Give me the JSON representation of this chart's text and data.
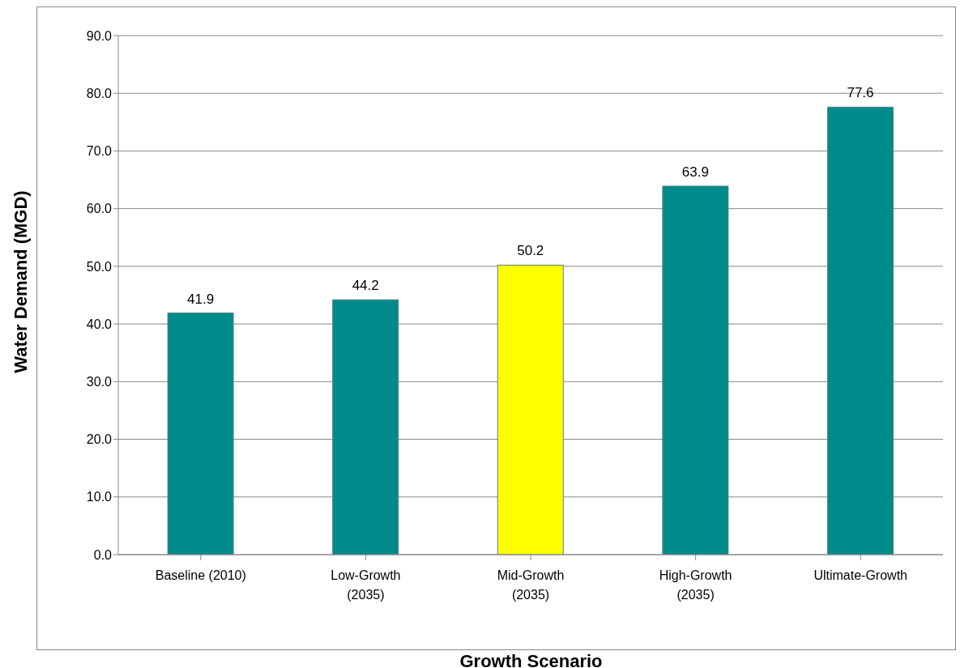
{
  "chart_data": {
    "type": "bar",
    "xlabel": "Growth Scenario",
    "ylabel": "Water Demand (MGD)",
    "categories": [
      "Baseline (2010)",
      "Low-Growth\n(2035)",
      "Mid-Growth\n(2035)",
      "High-Growth\n(2035)",
      "Ultimate-Growth"
    ],
    "values": [
      41.9,
      44.2,
      50.2,
      63.9,
      77.6
    ],
    "colors": [
      "#008b8b",
      "#008b8b",
      "#ffff00",
      "#008b8b",
      "#008b8b"
    ],
    "ylim": [
      0,
      90
    ],
    "yticks": [
      {
        "value": 0,
        "label": "0.0"
      },
      {
        "value": 10,
        "label": "10.0"
      },
      {
        "value": 20,
        "label": "20.0"
      },
      {
        "value": 30,
        "label": "30.0"
      },
      {
        "value": 40,
        "label": "40.0"
      },
      {
        "value": 50,
        "label": "50.0"
      },
      {
        "value": 60,
        "label": "60.0"
      },
      {
        "value": 70,
        "label": "70.0"
      },
      {
        "value": 80,
        "label": "80.0"
      },
      {
        "value": 90,
        "label": "90.0"
      }
    ],
    "grid": "y",
    "data_labels": true
  }
}
